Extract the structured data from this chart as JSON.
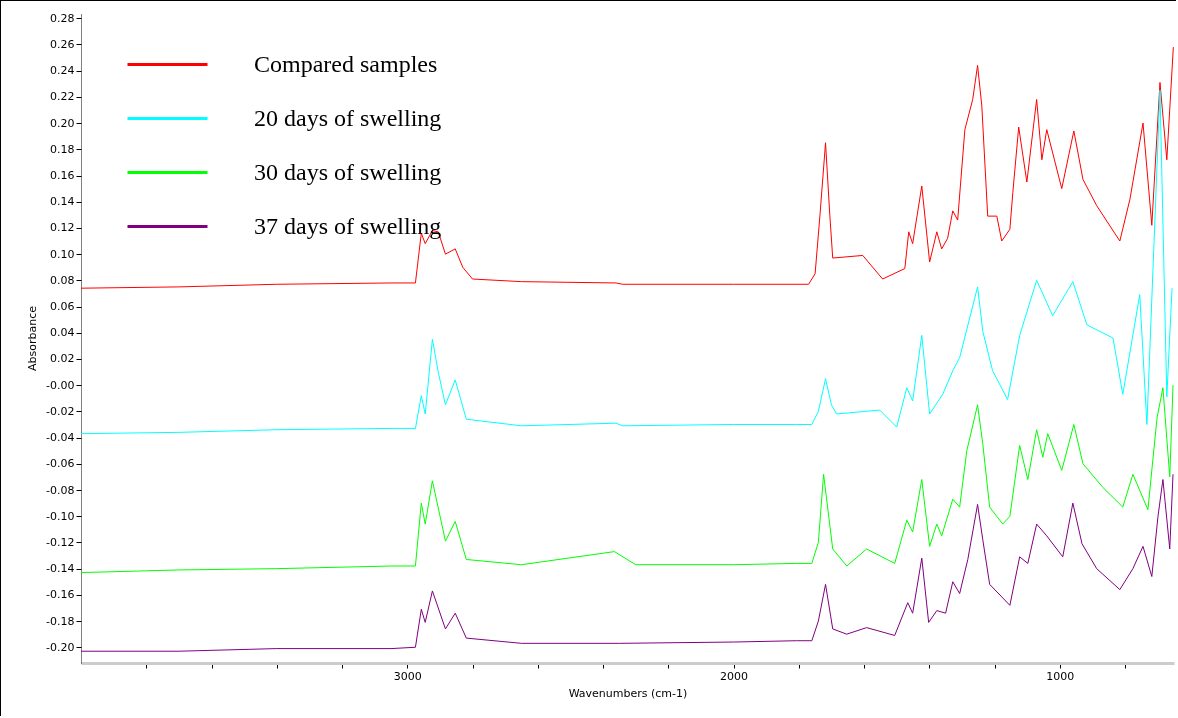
{
  "chart_data": {
    "type": "line",
    "xlabel": "Wavenumbers (cm-1)",
    "ylabel": "Absorbance",
    "xlim": [
      4000,
      650
    ],
    "ylim": [
      -0.212,
      0.284
    ],
    "xticks": [
      {
        "value": 3800,
        "label": null
      },
      {
        "value": 3600,
        "label": null
      },
      {
        "value": 3400,
        "label": null
      },
      {
        "value": 3200,
        "label": null
      },
      3000,
      {
        "value": 2800,
        "label": null
      },
      {
        "value": 2600,
        "label": null
      },
      {
        "value": 2400,
        "label": null
      },
      {
        "value": 2200,
        "label": null
      },
      2000,
      {
        "value": 1800,
        "label": null
      },
      {
        "value": 1600,
        "label": null
      },
      {
        "value": 1400,
        "label": null
      },
      {
        "value": 1200,
        "label": null
      },
      1000,
      {
        "value": 800,
        "label": null
      }
    ],
    "yticks": [
      {
        "value": -0.2,
        "label": "-0.20"
      },
      {
        "value": -0.18,
        "label": "-0.18"
      },
      {
        "value": -0.16,
        "label": "-0.16"
      },
      {
        "value": -0.14,
        "label": "-0.14"
      },
      {
        "value": -0.12,
        "label": "-0.12"
      },
      {
        "value": -0.1,
        "label": "-0.10"
      },
      {
        "value": -0.08,
        "label": "-0.08"
      },
      {
        "value": -0.06,
        "label": "-0.06"
      },
      {
        "value": -0.04,
        "label": "-0.04"
      },
      {
        "value": -0.02,
        "label": "-0.02"
      },
      {
        "value": 0,
        "label": "-0.00"
      },
      {
        "value": 0.02,
        "label": "0.02"
      },
      {
        "value": 0.04,
        "label": "0.04"
      },
      {
        "value": 0.06,
        "label": "0.06"
      },
      {
        "value": 0.08,
        "label": "0.08"
      },
      {
        "value": 0.1,
        "label": "0.10"
      },
      {
        "value": 0.12,
        "label": "0.12"
      },
      {
        "value": 0.14,
        "label": "0.14"
      },
      {
        "value": 0.16,
        "label": "0.16"
      },
      {
        "value": 0.18,
        "label": "0.18"
      },
      {
        "value": 0.2,
        "label": "0.20"
      },
      {
        "value": 0.22,
        "label": "0.22"
      },
      {
        "value": 0.24,
        "label": "0.24"
      },
      {
        "value": 0.26,
        "label": "0.26"
      },
      {
        "value": 0.28,
        "label": "0.28"
      }
    ],
    "grid": false,
    "legend": "top left",
    "marker": "none",
    "line_style": "solid",
    "series": [
      {
        "name": "Compared samples",
        "color": "#ff0000",
        "x": [
          4000,
          3700,
          3400,
          3050,
          2975,
          2957,
          2945,
          2923,
          2905,
          2883,
          2853,
          2830,
          2800,
          2650,
          2360,
          2340,
          2000,
          1770,
          1750,
          1735,
          1718,
          1705,
          1696,
          1604,
          1543,
          1475,
          1463,
          1451,
          1423,
          1399,
          1377,
          1362,
          1344,
          1328,
          1313,
          1291,
          1267,
          1252,
          1239,
          1221,
          1193,
          1178,
          1153,
          1144,
          1126,
          1101,
          1071,
          1055,
          1040,
          994,
          957,
          929,
          887,
          816,
          785,
          745,
          718,
          693,
          672,
          652
        ],
        "values": [
          0.074,
          0.075,
          0.077,
          0.078,
          0.078,
          0.116,
          0.108,
          0.118,
          0.117,
          0.1,
          0.104,
          0.09,
          0.081,
          0.079,
          0.078,
          0.077,
          0.077,
          0.077,
          0.085,
          0.13,
          0.185,
          0.13,
          0.097,
          0.099,
          0.081,
          0.089,
          0.117,
          0.108,
          0.152,
          0.094,
          0.117,
          0.104,
          0.112,
          0.133,
          0.126,
          0.195,
          0.218,
          0.244,
          0.213,
          0.129,
          0.129,
          0.11,
          0.119,
          0.147,
          0.197,
          0.155,
          0.218,
          0.172,
          0.195,
          0.15,
          0.194,
          0.157,
          0.137,
          0.11,
          0.142,
          0.2,
          0.122,
          0.231,
          0.172,
          0.258
        ]
      },
      {
        "name": "20 days of swelling",
        "color": "#00ffff",
        "x": [
          4000,
          3700,
          3400,
          3050,
          2975,
          2957,
          2945,
          2923,
          2905,
          2883,
          2853,
          2819,
          2650,
          2360,
          2340,
          2000,
          1807,
          1760,
          1740,
          1718,
          1700,
          1684,
          1552,
          1500,
          1469,
          1451,
          1423,
          1399,
          1359,
          1328,
          1307,
          1252,
          1236,
          1206,
          1160,
          1123,
          1071,
          1022,
          960,
          917,
          837,
          807,
          755,
          733,
          693,
          672,
          656
        ],
        "values": [
          -0.037,
          -0.036,
          -0.034,
          -0.033,
          -0.033,
          -0.008,
          -0.022,
          0.035,
          0.01,
          -0.015,
          0.004,
          -0.026,
          -0.031,
          -0.029,
          -0.031,
          -0.03,
          -0.03,
          -0.03,
          -0.02,
          0.005,
          -0.015,
          -0.022,
          -0.019,
          -0.032,
          -0.002,
          -0.012,
          0.038,
          -0.022,
          -0.007,
          0.011,
          0.021,
          0.075,
          0.041,
          0.011,
          -0.011,
          0.038,
          0.08,
          0.053,
          0.079,
          0.046,
          0.036,
          -0.007,
          0.069,
          -0.03,
          0.225,
          -0.009,
          0.074
        ]
      },
      {
        "name": "30 days of swelling",
        "color": "#00ff00",
        "x": [
          4000,
          3700,
          3400,
          3050,
          2975,
          2957,
          2945,
          2923,
          2883,
          2853,
          2819,
          2650,
          2365,
          2300,
          2000,
          1807,
          1760,
          1740,
          1724,
          1696,
          1653,
          1592,
          1506,
          1469,
          1451,
          1423,
          1399,
          1377,
          1362,
          1328,
          1307,
          1285,
          1252,
          1236,
          1215,
          1175,
          1153,
          1123,
          1098,
          1071,
          1052,
          1037,
          994,
          957,
          929,
          868,
          807,
          776,
          730,
          702,
          684,
          663,
          653
        ],
        "values": [
          -0.143,
          -0.141,
          -0.14,
          -0.138,
          -0.138,
          -0.09,
          -0.106,
          -0.073,
          -0.119,
          -0.104,
          -0.133,
          -0.137,
          -0.127,
          -0.137,
          -0.137,
          -0.136,
          -0.136,
          -0.12,
          -0.068,
          -0.125,
          -0.138,
          -0.125,
          -0.136,
          -0.103,
          -0.112,
          -0.072,
          -0.123,
          -0.106,
          -0.115,
          -0.087,
          -0.093,
          -0.05,
          -0.015,
          -0.045,
          -0.093,
          -0.106,
          -0.1,
          -0.046,
          -0.072,
          -0.034,
          -0.055,
          -0.037,
          -0.065,
          -0.03,
          -0.06,
          -0.078,
          -0.093,
          -0.068,
          -0.095,
          -0.025,
          -0.002,
          -0.07,
          0.0
        ]
      },
      {
        "name": "37 days of swelling",
        "color": "#800080",
        "x": [
          4000,
          3700,
          3400,
          3050,
          2975,
          2957,
          2945,
          2923,
          2883,
          2853,
          2819,
          2650,
          2350,
          2000,
          1807,
          1760,
          1740,
          1718,
          1696,
          1653,
          1592,
          1506,
          1466,
          1451,
          1423,
          1402,
          1377,
          1350,
          1328,
          1307,
          1282,
          1252,
          1236,
          1215,
          1153,
          1123,
          1098,
          1071,
          1040,
          991,
          960,
          932,
          887,
          816,
          776,
          745,
          718,
          699,
          684,
          663,
          653
        ],
        "values": [
          -0.203,
          -0.203,
          -0.201,
          -0.201,
          -0.2,
          -0.171,
          -0.181,
          -0.157,
          -0.186,
          -0.174,
          -0.193,
          -0.197,
          -0.197,
          -0.196,
          -0.195,
          -0.195,
          -0.18,
          -0.152,
          -0.186,
          -0.19,
          -0.185,
          -0.191,
          -0.166,
          -0.174,
          -0.132,
          -0.181,
          -0.172,
          -0.174,
          -0.15,
          -0.159,
          -0.133,
          -0.091,
          -0.118,
          -0.152,
          -0.168,
          -0.131,
          -0.136,
          -0.106,
          -0.115,
          -0.131,
          -0.09,
          -0.121,
          -0.14,
          -0.156,
          -0.14,
          -0.123,
          -0.146,
          -0.1,
          -0.072,
          -0.125,
          -0.068
        ]
      }
    ]
  }
}
